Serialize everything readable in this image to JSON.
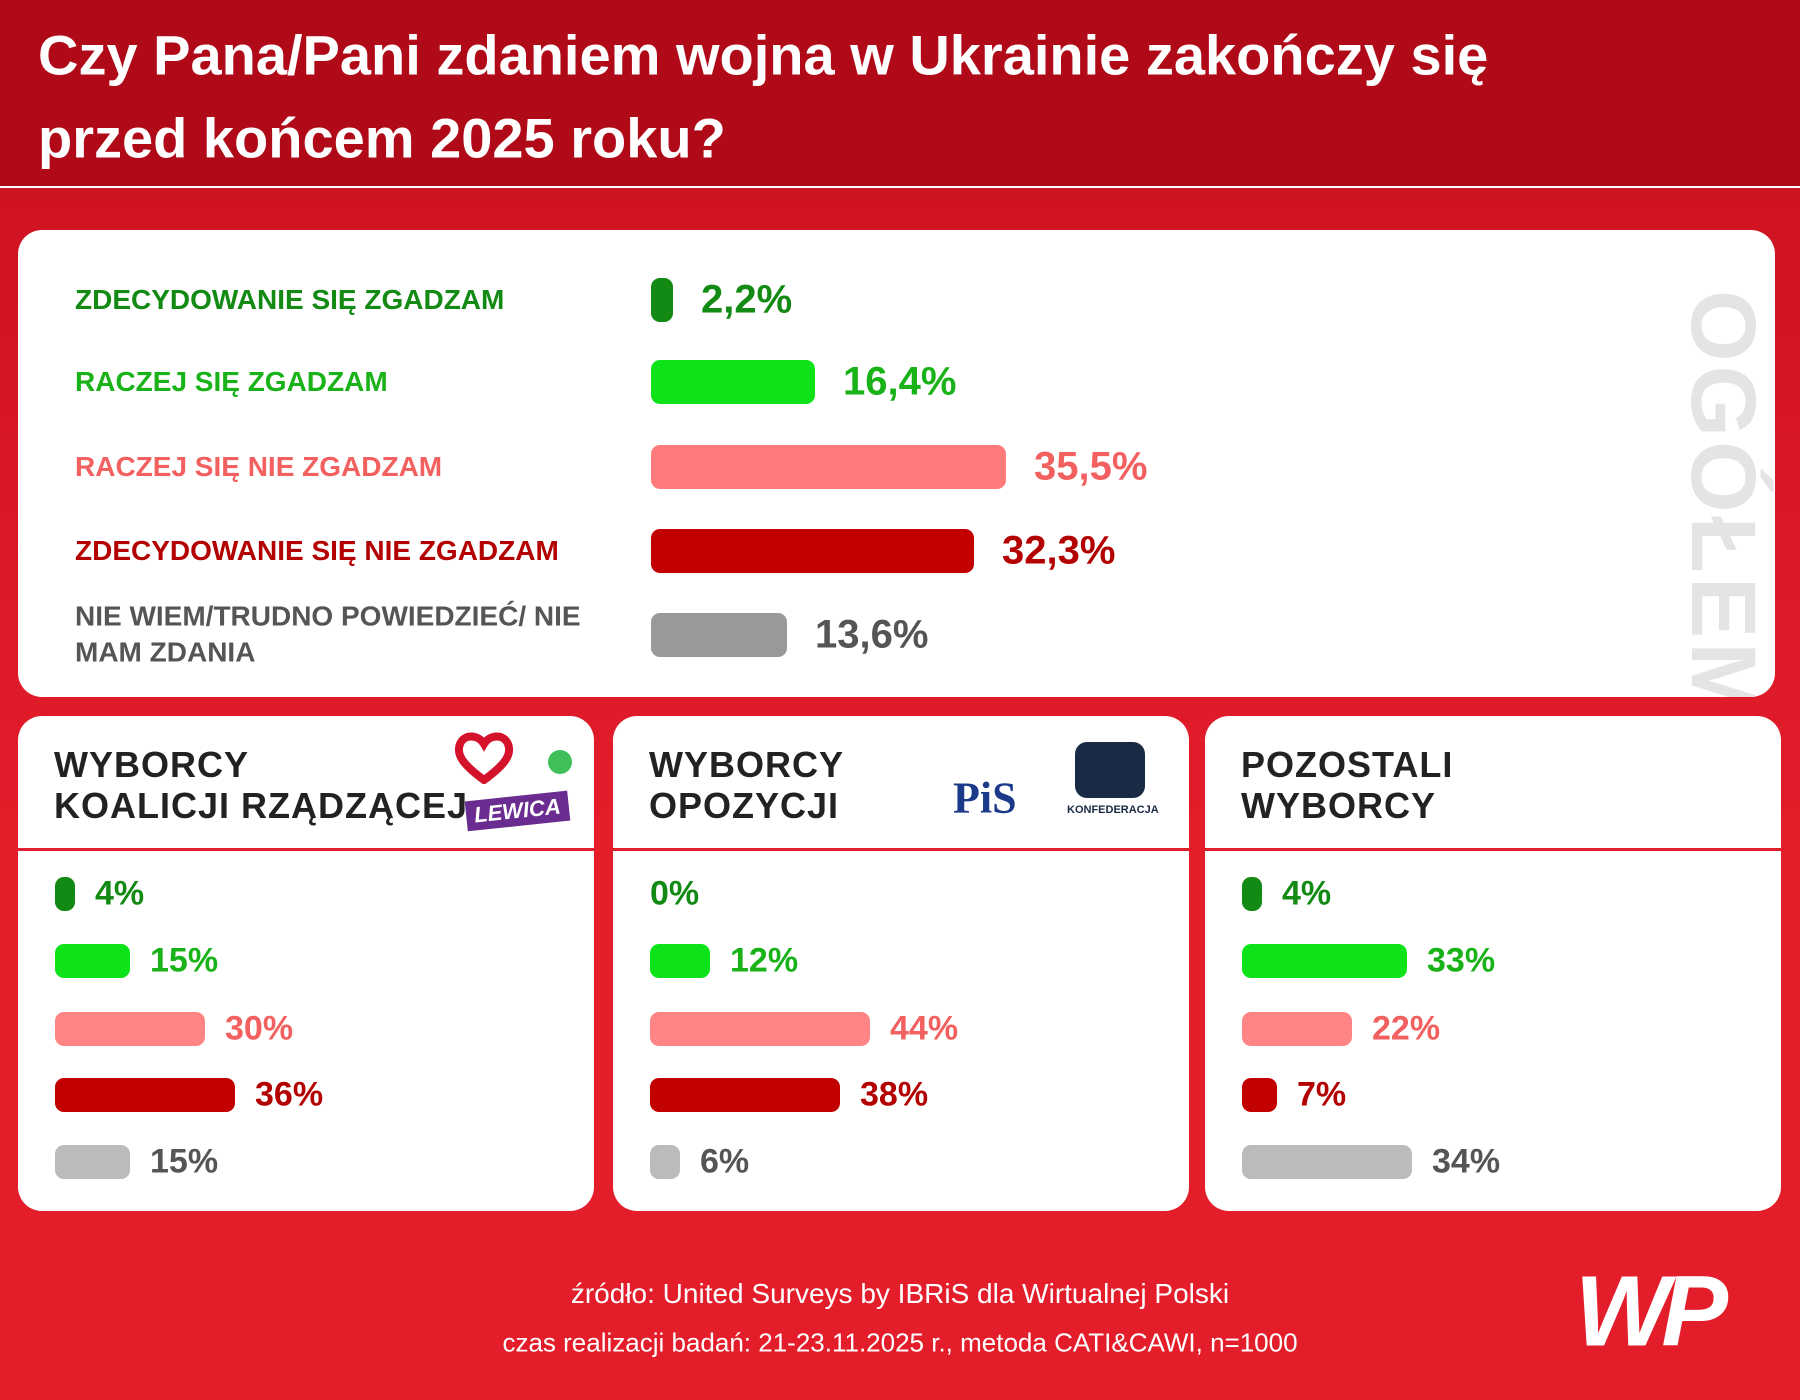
{
  "title": [
    "Czy Pana/Pani zdaniem wojna w Ukrainie zakończy się",
    "przed końcem 2025 roku?"
  ],
  "chart_data": [
    {
      "type": "bar",
      "title": "OGÓŁEM",
      "categories": [
        "ZDECYDOWANIE SIĘ ZGADZAM",
        "RACZEJ SIĘ ZGADZAM",
        "RACZEJ SIĘ NIE ZGADZAM",
        "ZDECYDOWANIE SIĘ NIE ZGADZAM",
        "NIE WIEM/TRUDNO POWIEDZIEĆ/ NIE MAM ZDANIA"
      ],
      "values": [
        2.2,
        16.4,
        35.5,
        32.3,
        13.6
      ],
      "value_labels": [
        "2,2%",
        "16,4%",
        "35,5%",
        "32,3%",
        "13,6%"
      ],
      "colors": [
        "#138a13",
        "#0ee31a",
        "#ff7b7b",
        "#c30000",
        "#999999"
      ],
      "label_colors": [
        "#138a13",
        "#19b319",
        "#f26060",
        "#b30000",
        "#555555"
      ]
    },
    {
      "type": "bar",
      "title": [
        "WYBORCY",
        "KOALICJI RZĄDZĄCEJ"
      ],
      "logos": [
        "LEWICA"
      ],
      "values": [
        4,
        15,
        30,
        36,
        15
      ],
      "value_labels": [
        "4%",
        "15%",
        "30%",
        "36%",
        "15%"
      ],
      "colors": [
        "#138a13",
        "#0ee31a",
        "#ff8585",
        "#c30000",
        "#bbbbbb"
      ],
      "label_colors": [
        "#138a13",
        "#19b319",
        "#f26060",
        "#b30000",
        "#555555"
      ]
    },
    {
      "type": "bar",
      "title": [
        "WYBORCY",
        "OPOZYCJI"
      ],
      "logos": [
        "PiS",
        "KONFEDERACJA"
      ],
      "values": [
        0,
        12,
        44,
        38,
        6
      ],
      "value_labels": [
        "0%",
        "12%",
        "44%",
        "38%",
        "6%"
      ],
      "colors": [
        "#138a13",
        "#0ee31a",
        "#ff8585",
        "#c30000",
        "#bbbbbb"
      ],
      "label_colors": [
        "#138a13",
        "#19b319",
        "#f26060",
        "#b30000",
        "#555555"
      ]
    },
    {
      "type": "bar",
      "title": [
        "POZOSTALI",
        "WYBORCY"
      ],
      "values": [
        4,
        33,
        22,
        7,
        34
      ],
      "value_labels": [
        "4%",
        "33%",
        "22%",
        "7%",
        "34%"
      ],
      "colors": [
        "#138a13",
        "#0ee31a",
        "#ff8585",
        "#c30000",
        "#bbbbbb"
      ],
      "label_colors": [
        "#138a13",
        "#19b319",
        "#f26060",
        "#b30000",
        "#555555"
      ]
    }
  ],
  "source": "źródło: United Surveys by IBRiS dla Wirtualnej Polski",
  "fieldwork": "czas realizacji badań: 21-23.11.2025 r., metoda CATI&CAWI, n=1000",
  "brand": "WP"
}
